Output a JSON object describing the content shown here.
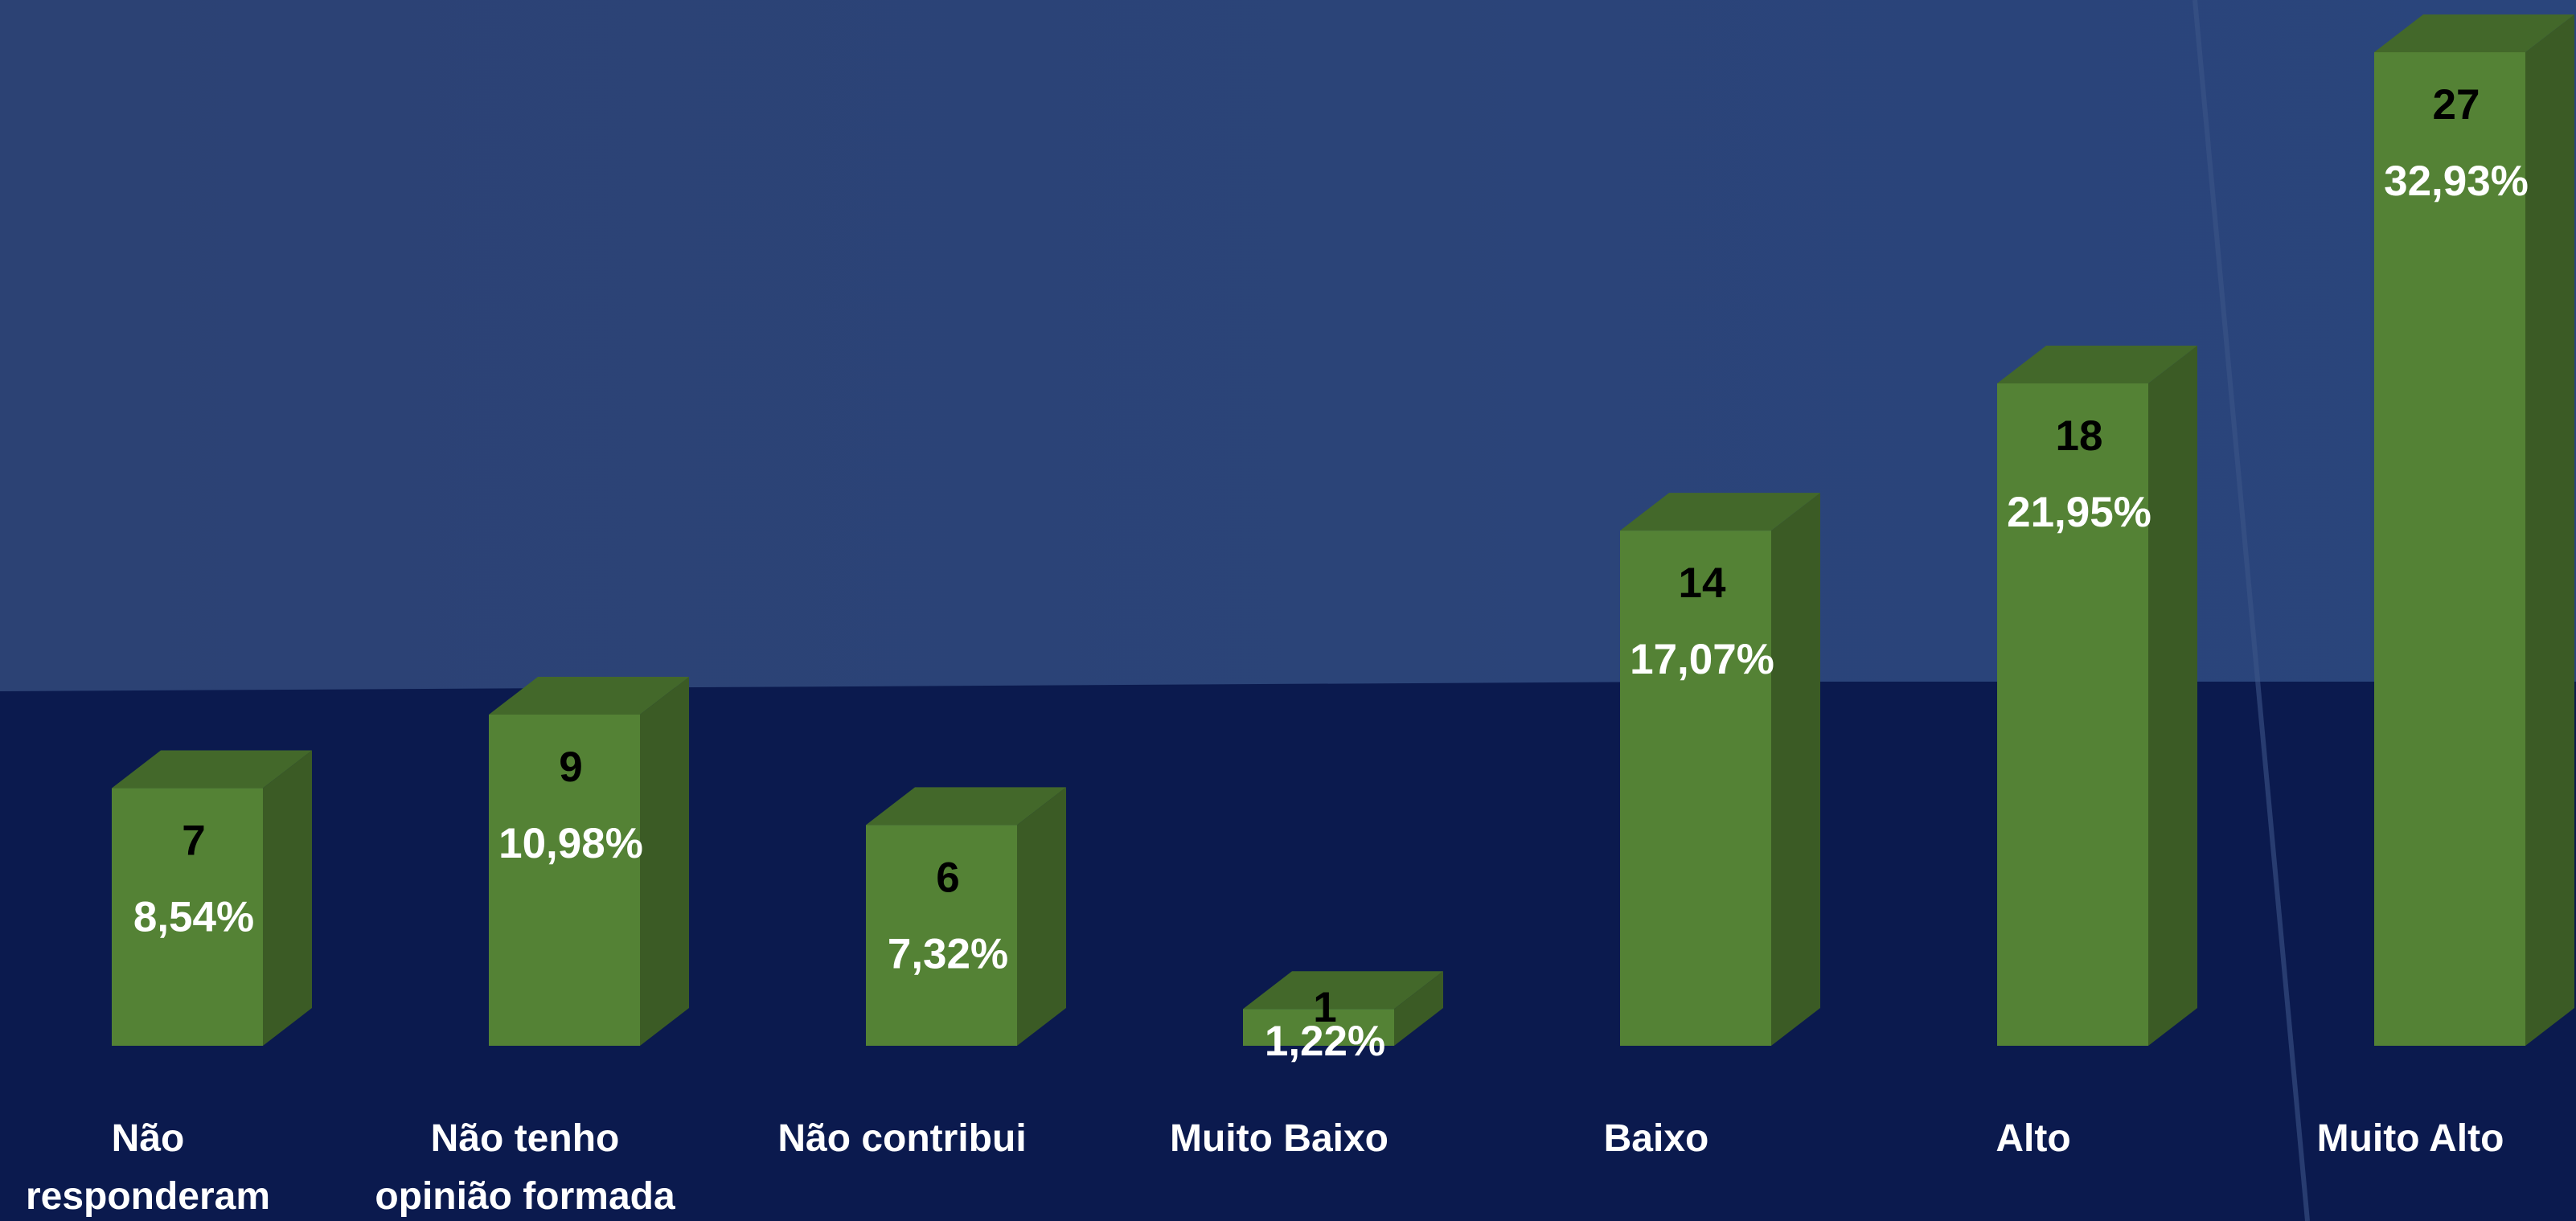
{
  "chart_data": {
    "type": "bar3d",
    "categories": [
      [
        "Não",
        "responderam"
      ],
      [
        "Não tenho",
        "opinião formada"
      ],
      [
        "Não contribui"
      ],
      [
        "Muito Baixo"
      ],
      [
        "Baixo"
      ],
      [
        "Alto"
      ],
      [
        "Muito Alto"
      ]
    ],
    "values": [
      7,
      9,
      6,
      1,
      14,
      18,
      27
    ],
    "percent": [
      8.54,
      10.98,
      7.32,
      1.22,
      17.07,
      21.95,
      32.93
    ],
    "percent_labels": [
      "8,54%",
      "10,98%",
      "7,32%",
      "1,22%",
      "17,07%",
      "21,95%",
      "32,93%"
    ],
    "color": "#548235"
  }
}
